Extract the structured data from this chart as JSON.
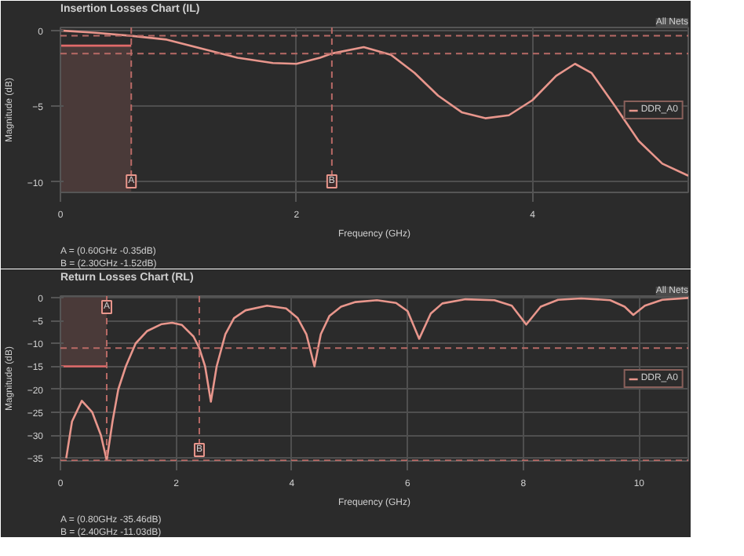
{
  "chart_data": [
    {
      "type": "line",
      "title": "Insertion Losses Chart (IL)",
      "xlabel": "Frequency (GHz)",
      "ylabel": "Magnitude (dB)",
      "annotations": [
        "All Nets",
        "A = (0.60GHz -0.35dB)",
        "B = (2.30GHz -1.52dB)"
      ],
      "x": [
        0,
        0.3,
        0.6,
        0.9,
        1.2,
        1.5,
        1.8,
        2.0,
        2.2,
        2.3,
        2.57,
        2.8,
        3.0,
        3.2,
        3.4,
        3.6,
        3.8,
        4.0,
        4.2,
        4.36,
        4.5,
        4.7,
        4.9,
        5.1,
        5.32
      ],
      "series": [
        {
          "name": "DDR_A0",
          "color": "#e8968c",
          "values": [
            0,
            -0.15,
            -0.35,
            -0.6,
            -1.2,
            -1.8,
            -2.15,
            -2.2,
            -1.8,
            -1.52,
            -1.1,
            -1.6,
            -2.8,
            -4.3,
            -5.4,
            -5.8,
            -5.6,
            -4.6,
            -3.0,
            -2.2,
            -2.8,
            -5.0,
            -7.3,
            -8.8,
            -9.6
          ]
        },
        {
          "type": "line",
          "color": "#e06a6a",
          "x": [
            0,
            0.6
          ],
          "values": [
            -1,
            -1
          ],
          "lower": [
            -10.7,
            -10.7
          ],
          "upper": [
            -1,
            -1
          ]
        }
      ],
      "xlim": [
        0,
        5.32
      ],
      "ylim": [
        -10.7,
        0.2
      ],
      "xticks": [
        0,
        2,
        4
      ],
      "yticks": [
        0,
        -5,
        -10
      ],
      "grid": true,
      "legend": "right",
      "ref_lines": [
        {
          "axis": "x",
          "value": 0.6,
          "label": "A"
        },
        {
          "axis": "x",
          "value": 2.3,
          "label": "B"
        },
        {
          "axis": "y",
          "value": -0.35,
          "label": null
        },
        {
          "axis": "y",
          "value": -1.52,
          "label": null
        }
      ]
    },
    {
      "type": "line",
      "title": "Return Losses Chart (RL)",
      "xlabel": "Frequency (GHz)",
      "ylabel": "Magnitude (dB)",
      "annotations": [
        "All Nets",
        "A = (0.80GHz -35.46dB)",
        "B = (2.40GHz -11.03dB)"
      ],
      "x": [
        0.1,
        0.2,
        0.37,
        0.55,
        0.7,
        0.8,
        0.9,
        1.0,
        1.13,
        1.3,
        1.5,
        1.75,
        1.93,
        2.1,
        2.3,
        2.4,
        2.5,
        2.6,
        2.7,
        2.85,
        3.0,
        3.2,
        3.57,
        3.9,
        4.1,
        4.25,
        4.39,
        4.5,
        4.65,
        4.85,
        5.1,
        5.47,
        5.8,
        6.0,
        6.2,
        6.4,
        6.6,
        7.0,
        7.5,
        7.8,
        8.05,
        8.3,
        8.6,
        9.0,
        9.5,
        9.75,
        9.9,
        10.1,
        10.4,
        10.85
      ],
      "series": [
        {
          "name": "DDR_A0",
          "color": "#e8968c",
          "values": [
            -35,
            -27,
            -22.5,
            -25,
            -30,
            -35.46,
            -27,
            -20,
            -15,
            -10,
            -7.3,
            -5.8,
            -5.5,
            -6.0,
            -8.5,
            -11.03,
            -15,
            -22.7,
            -15,
            -8,
            -4.5,
            -2.8,
            -1.8,
            -2.4,
            -4.5,
            -8,
            -15,
            -8,
            -4,
            -2,
            -1.0,
            -0.6,
            -1.2,
            -3.0,
            -9.0,
            -3.5,
            -1.3,
            -0.4,
            -0.6,
            -1.8,
            -5.9,
            -2.0,
            -0.5,
            -0.2,
            -0.6,
            -2.0,
            -3.8,
            -1.8,
            -0.5,
            -0.1
          ]
        },
        {
          "type": "line",
          "color": "#e06a6a",
          "x": [
            0,
            0.8
          ],
          "values": [
            -15,
            -15
          ],
          "lower": [
            -15,
            -15
          ],
          "upper": [
            0,
            0
          ]
        }
      ],
      "xlim": [
        0,
        10.85
      ],
      "ylim": [
        -35.6,
        0.3
      ],
      "xticks": [
        0,
        2,
        4,
        6,
        8,
        10
      ],
      "yticks": [
        0,
        -5,
        -10,
        -15,
        -20,
        -25,
        -30,
        -35
      ],
      "grid": true,
      "legend": "right",
      "ref_lines": [
        {
          "axis": "x",
          "value": 0.8,
          "label": "A"
        },
        {
          "axis": "x",
          "value": 2.4,
          "label": "B"
        },
        {
          "axis": "y",
          "value": -35.46,
          "label": null
        },
        {
          "axis": "y",
          "value": -11.03,
          "label": null
        }
      ]
    }
  ]
}
